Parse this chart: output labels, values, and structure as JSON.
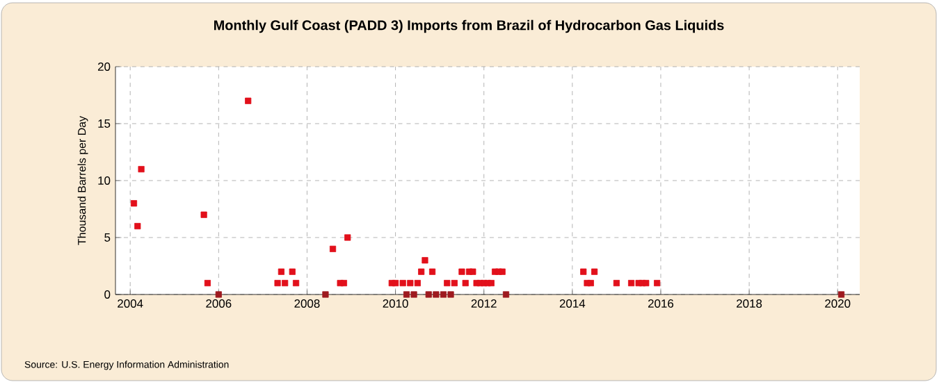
{
  "chart_data": {
    "type": "scatter",
    "title": "Monthly Gulf Coast (PADD 3) Imports from Brazil of Hydrocarbon Gas Liquids",
    "ylabel": "Thousand Barrels per Day",
    "annotations": [
      "Source: U.S. Energy Information Administration"
    ],
    "x": [
      "2004-02",
      "2004-03",
      "2004-04",
      "2005-09",
      "2005-10",
      "2006-01",
      "2006-09",
      "2007-05",
      "2007-06",
      "2007-07",
      "2007-09",
      "2007-10",
      "2008-06",
      "2008-08",
      "2008-10",
      "2008-11",
      "2008-12",
      "2009-12",
      "2010-01",
      "2010-03",
      "2010-04",
      "2010-05",
      "2010-06",
      "2010-07",
      "2010-08",
      "2010-09",
      "2010-10",
      "2010-11",
      "2010-12",
      "2011-02",
      "2011-03",
      "2011-04",
      "2011-05",
      "2011-07",
      "2011-08",
      "2011-09",
      "2011-10",
      "2011-11",
      "2011-12",
      "2012-01",
      "2012-02",
      "2012-03",
      "2012-04",
      "2012-05",
      "2012-06",
      "2012-07",
      "2014-04",
      "2014-05",
      "2014-06",
      "2014-07",
      "2015-01",
      "2015-05",
      "2015-07",
      "2015-08",
      "2015-09",
      "2015-12",
      "2020-02"
    ],
    "values": [
      8,
      6,
      11,
      7,
      1,
      0,
      17,
      1,
      2,
      1,
      2,
      1,
      0,
      4,
      1,
      1,
      5,
      1,
      1,
      1,
      0,
      1,
      0,
      1,
      2,
      3,
      0,
      2,
      0,
      0,
      1,
      0,
      1,
      2,
      1,
      2,
      2,
      1,
      1,
      1,
      1,
      1,
      2,
      2,
      2,
      0,
      2,
      1,
      1,
      2,
      1,
      1,
      1,
      1,
      1,
      1,
      0
    ],
    "colors": [
      "#e2101b",
      "#e2101b",
      "#e2101b",
      "#e2101b",
      "#e2101b",
      "#9e1a1f",
      "#e2101b",
      "#e2101b",
      "#e2101b",
      "#e2101b",
      "#e2101b",
      "#e2101b",
      "#9e1a1f",
      "#e2101b",
      "#e2101b",
      "#e2101b",
      "#e2101b",
      "#e2101b",
      "#e2101b",
      "#e2101b",
      "#9e1a1f",
      "#e2101b",
      "#9e1a1f",
      "#e2101b",
      "#e2101b",
      "#e2101b",
      "#9e1a1f",
      "#e2101b",
      "#9e1a1f",
      "#9e1a1f",
      "#e2101b",
      "#9e1a1f",
      "#e2101b",
      "#e2101b",
      "#e2101b",
      "#e2101b",
      "#e2101b",
      "#e2101b",
      "#e2101b",
      "#e2101b",
      "#e2101b",
      "#e2101b",
      "#e2101b",
      "#e2101b",
      "#e2101b",
      "#9e1a1f",
      "#e2101b",
      "#e2101b",
      "#e2101b",
      "#e2101b",
      "#e2101b",
      "#e2101b",
      "#e2101b",
      "#e2101b",
      "#e2101b",
      "#e2101b",
      "#9e1a1f"
    ],
    "marker": "square",
    "xlim": [
      "2003-09",
      "2020-07"
    ],
    "xticks": [
      "2004",
      "2006",
      "2008",
      "2010",
      "2012",
      "2014",
      "2016",
      "2018",
      "2020"
    ],
    "ylim": [
      0,
      20
    ],
    "yticks": [
      0,
      5,
      10,
      15,
      20
    ],
    "grid": true
  }
}
